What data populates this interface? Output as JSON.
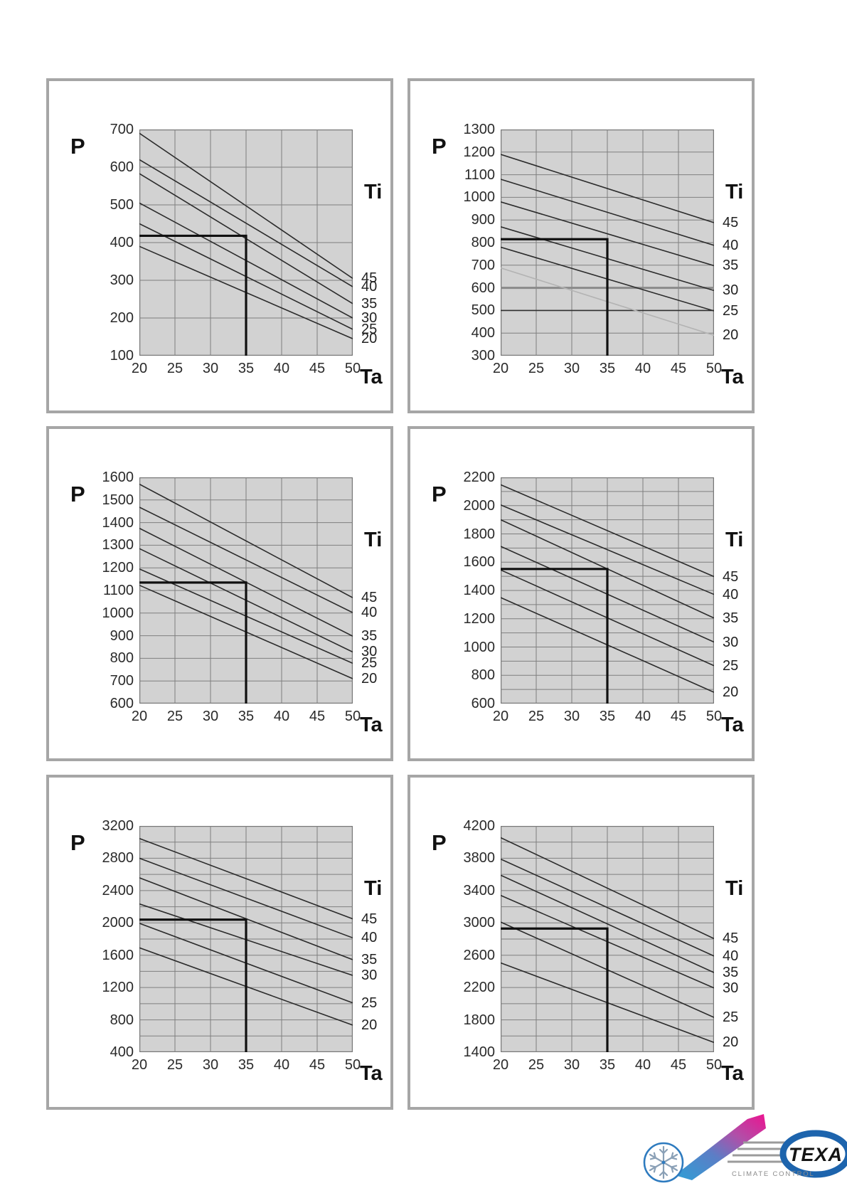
{
  "labels": {
    "p": "P",
    "ti": "Ti",
    "ta": "Ta"
  },
  "logo": {
    "brand": "TEXA",
    "subtitle": "CLIMATE CONTROL",
    "colors": {
      "oval_blue": "#1d64ad",
      "bar_blue": "#2f9fd6",
      "bar_magenta": "#ec1390",
      "speed_gray": "#9b9b9b",
      "snowflake_blue": "#8aa0b6"
    }
  },
  "chart_data": [
    {
      "type": "line",
      "xlabel": "Ta",
      "ylabel": "P",
      "legend_title": "Ti",
      "xlim": [
        20,
        50
      ],
      "xticks": [
        "20",
        "25",
        "30",
        "35",
        "40",
        "45",
        "50"
      ],
      "ylim": [
        100,
        700
      ],
      "grid_step": 100,
      "yticks": [
        "700",
        "600",
        "500",
        "400",
        "300",
        "200",
        "100"
      ],
      "series": [
        {
          "name": "45",
          "values": [
            690,
            305
          ]
        },
        {
          "name": "40",
          "values": [
            620,
            283
          ]
        },
        {
          "name": "35",
          "values": [
            583,
            238
          ]
        },
        {
          "name": "30",
          "values": [
            505,
            200
          ]
        },
        {
          "name": "25",
          "values": [
            450,
            170
          ]
        },
        {
          "name": "20",
          "values": [
            390,
            145
          ]
        }
      ],
      "marker": {
        "ta": 35,
        "p": 418
      }
    },
    {
      "type": "line",
      "xlabel": "Ta",
      "ylabel": "P",
      "legend_title": "Ti",
      "xlim": [
        20,
        50
      ],
      "xticks": [
        "20",
        "25",
        "30",
        "35",
        "40",
        "45",
        "50"
      ],
      "ylim": [
        300,
        1300
      ],
      "grid_step": 100,
      "yticks": [
        "1300",
        "1200",
        "1100",
        "1000",
        "900",
        "800",
        "700",
        "600",
        "500",
        "400",
        "300"
      ],
      "series": [
        {
          "name": "45",
          "values": [
            1190,
            888
          ]
        },
        {
          "name": "40",
          "values": [
            1080,
            788
          ]
        },
        {
          "name": "35",
          "values": [
            980,
            698
          ]
        },
        {
          "name": "30",
          "values": [
            870,
            588
          ]
        },
        {
          "name": "25",
          "values": [
            780,
            498
          ]
        },
        {
          "name": "20",
          "values": [
            688,
            390
          ],
          "color": "#b3b3b3"
        }
      ],
      "emphasis_gridlines": [
        {
          "value": 600,
          "color": "#8a8a8a",
          "width": 3
        },
        {
          "value": 500,
          "color": "#2f2f2f",
          "width": 1.6
        }
      ],
      "marker": {
        "ta": 35,
        "p": 815
      }
    },
    {
      "type": "line",
      "xlabel": "Ta",
      "ylabel": "P",
      "legend_title": "Ti",
      "xlim": [
        20,
        50
      ],
      "xticks": [
        "20",
        "25",
        "30",
        "35",
        "40",
        "45",
        "50"
      ],
      "ylim": [
        600,
        1600
      ],
      "grid_step": 100,
      "yticks": [
        "1600",
        "1500",
        "1400",
        "1300",
        "1200",
        "1100",
        "1000",
        "900",
        "800",
        "700",
        "600"
      ],
      "series": [
        {
          "name": "45",
          "values": [
            1570,
            1068
          ]
        },
        {
          "name": "40",
          "values": [
            1468,
            1002
          ]
        },
        {
          "name": "35",
          "values": [
            1375,
            898
          ]
        },
        {
          "name": "30",
          "values": [
            1285,
            828
          ]
        },
        {
          "name": "25",
          "values": [
            1195,
            778
          ]
        },
        {
          "name": "20",
          "values": [
            1123,
            710
          ]
        }
      ],
      "marker": {
        "ta": 35,
        "p": 1135
      }
    },
    {
      "type": "line",
      "xlabel": "Ta",
      "ylabel": "P",
      "legend_title": "Ti",
      "xlim": [
        20,
        50
      ],
      "xticks": [
        "20",
        "25",
        "30",
        "35",
        "40",
        "45",
        "50"
      ],
      "ylim": [
        600,
        2200
      ],
      "grid_step": 100,
      "yticks": [
        "2200",
        "2000",
        "1800",
        "1600",
        "1400",
        "1200",
        "1000",
        "800",
        "600"
      ],
      "series": [
        {
          "name": "45",
          "values": [
            2148,
            1498
          ]
        },
        {
          "name": "40",
          "values": [
            2005,
            1372
          ]
        },
        {
          "name": "35",
          "values": [
            1900,
            1205
          ]
        },
        {
          "name": "30",
          "values": [
            1712,
            1035
          ]
        },
        {
          "name": "25",
          "values": [
            1545,
            868
          ]
        },
        {
          "name": "20",
          "values": [
            1350,
            680
          ]
        }
      ],
      "marker": {
        "ta": 35,
        "p": 1552
      }
    },
    {
      "type": "line",
      "xlabel": "Ta",
      "ylabel": "P",
      "legend_title": "Ti",
      "xlim": [
        20,
        50
      ],
      "xticks": [
        "20",
        "25",
        "30",
        "35",
        "40",
        "45",
        "50"
      ],
      "ylim": [
        400,
        3200
      ],
      "grid_step": 200,
      "yticks": [
        "3200",
        "2800",
        "2400",
        "2000",
        "1600",
        "1200",
        "800",
        "400"
      ],
      "series": [
        {
          "name": "45",
          "values": [
            3045,
            2050
          ]
        },
        {
          "name": "40",
          "values": [
            2800,
            1815
          ]
        },
        {
          "name": "35",
          "values": [
            2558,
            1545
          ]
        },
        {
          "name": "30",
          "values": [
            2235,
            1350
          ]
        },
        {
          "name": "25",
          "values": [
            1995,
            1010
          ]
        },
        {
          "name": "20",
          "values": [
            1692,
            735
          ]
        }
      ],
      "marker": {
        "ta": 35,
        "p": 2040
      }
    },
    {
      "type": "line",
      "xlabel": "Ta",
      "ylabel": "P",
      "legend_title": "Ti",
      "xlim": [
        20,
        50
      ],
      "xticks": [
        "20",
        "25",
        "30",
        "35",
        "40",
        "45",
        "50"
      ],
      "ylim": [
        1400,
        4200
      ],
      "grid_step": 200,
      "yticks": [
        "4200",
        "3800",
        "3400",
        "3000",
        "2600",
        "2200",
        "1800",
        "1400"
      ],
      "series": [
        {
          "name": "45",
          "values": [
            4055,
            2805
          ]
        },
        {
          "name": "40",
          "values": [
            3790,
            2590
          ]
        },
        {
          "name": "35",
          "values": [
            3590,
            2385
          ]
        },
        {
          "name": "30",
          "values": [
            3340,
            2195
          ]
        },
        {
          "name": "25",
          "values": [
            3010,
            1830
          ]
        },
        {
          "name": "20",
          "values": [
            2505,
            1520
          ]
        }
      ],
      "marker": {
        "ta": 35,
        "p": 2930
      }
    }
  ]
}
